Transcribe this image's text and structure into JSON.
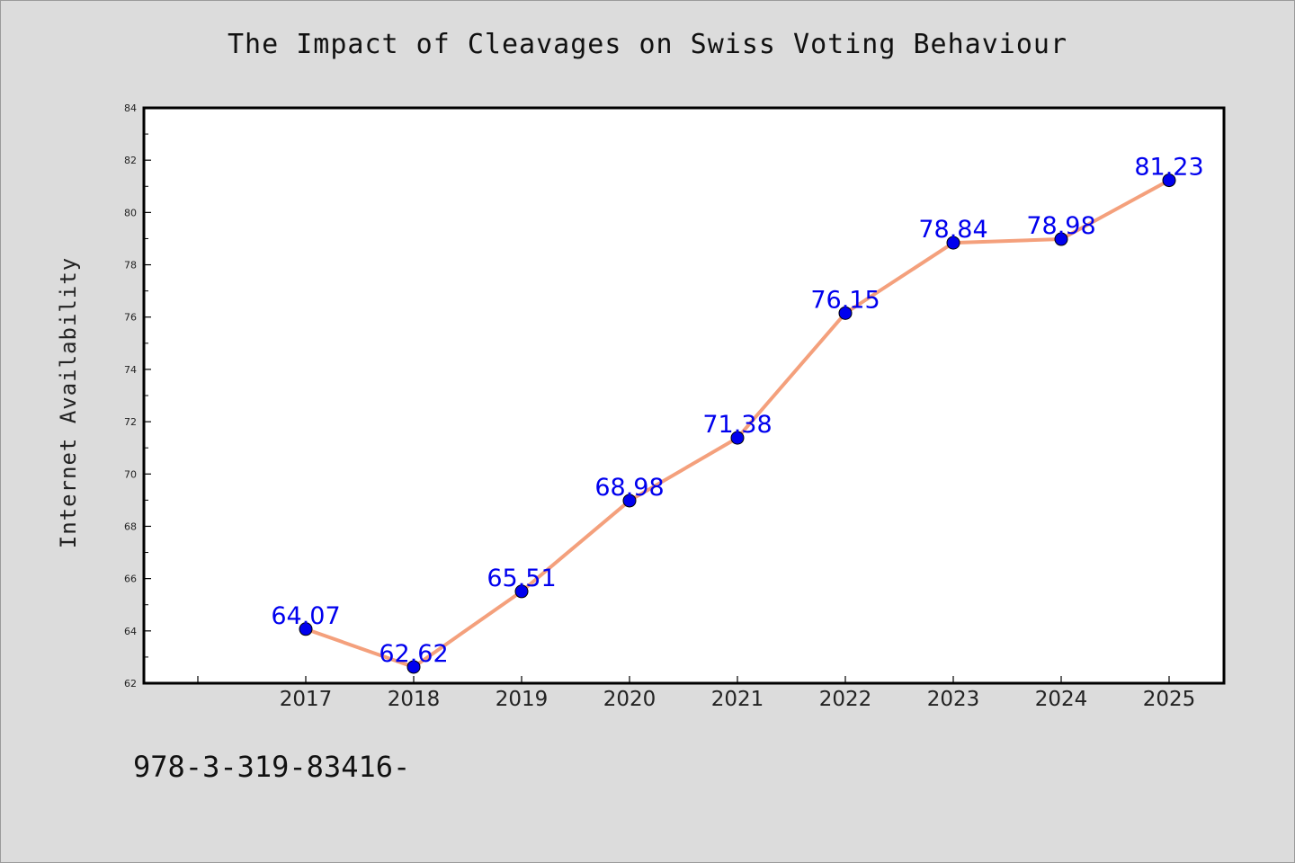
{
  "chart_data": {
    "type": "line",
    "title": "The Impact of Cleavages on Swiss Voting Behaviour",
    "xlabel": "",
    "ylabel": "Internet Availability",
    "x": [
      "2017",
      "2018",
      "2019",
      "2020",
      "2021",
      "2022",
      "2023",
      "2024",
      "2025"
    ],
    "series": [
      {
        "values": [
          64.07,
          62.62,
          65.51,
          68.98,
          71.38,
          76.15,
          78.84,
          78.98,
          81.23
        ],
        "data_labels": [
          "64.07",
          "62.62",
          "65.51",
          "68.98",
          "71.38",
          "76.15",
          "78.84",
          "78.98",
          "81.23"
        ]
      }
    ],
    "ylim": [
      62,
      84
    ],
    "yticks": [
      62,
      64,
      66,
      68,
      70,
      72,
      74,
      76,
      78,
      80,
      82,
      84
    ],
    "grid": false,
    "line_color": "#f4a07c",
    "marker_color": "#0000ee",
    "label_color": "#0000ee"
  },
  "footnote": "978-3-319-83416-"
}
